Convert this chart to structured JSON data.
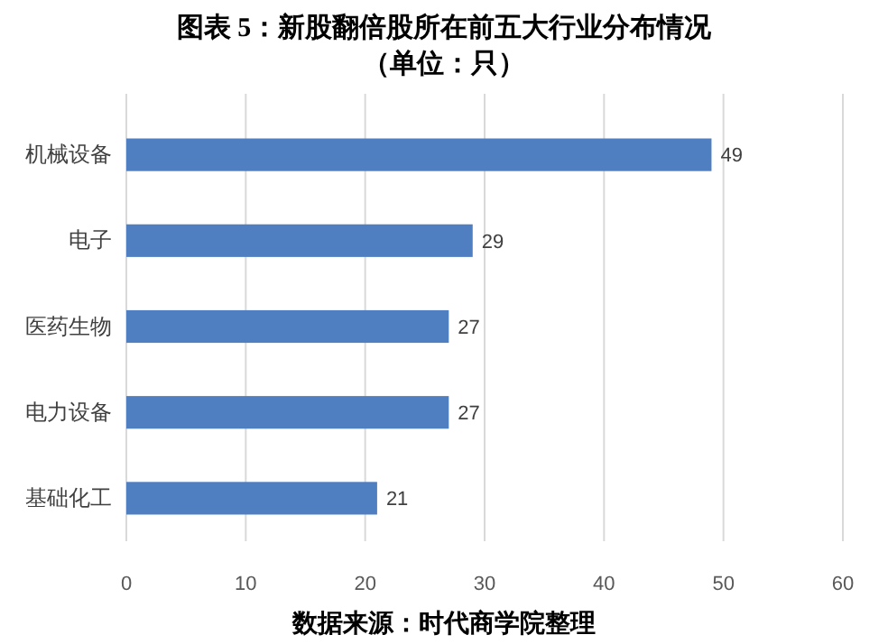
{
  "chart_data": {
    "type": "bar",
    "orientation": "horizontal",
    "title": "图表 5：新股翻倍股所在前五大行业分布情况",
    "subtitle": "（单位：只）",
    "categories": [
      "机械设备",
      "电子",
      "医药生物",
      "电力设备",
      "基础化工"
    ],
    "values": [
      49,
      29,
      27,
      27,
      21
    ],
    "color": "#4f7ec1",
    "data_labels": true,
    "xlim": [
      0,
      60
    ],
    "xticks": [
      0,
      10,
      20,
      30,
      40,
      50,
      60
    ],
    "grid": "x",
    "annotations": [
      "数据来源：时代商学院整理"
    ]
  }
}
